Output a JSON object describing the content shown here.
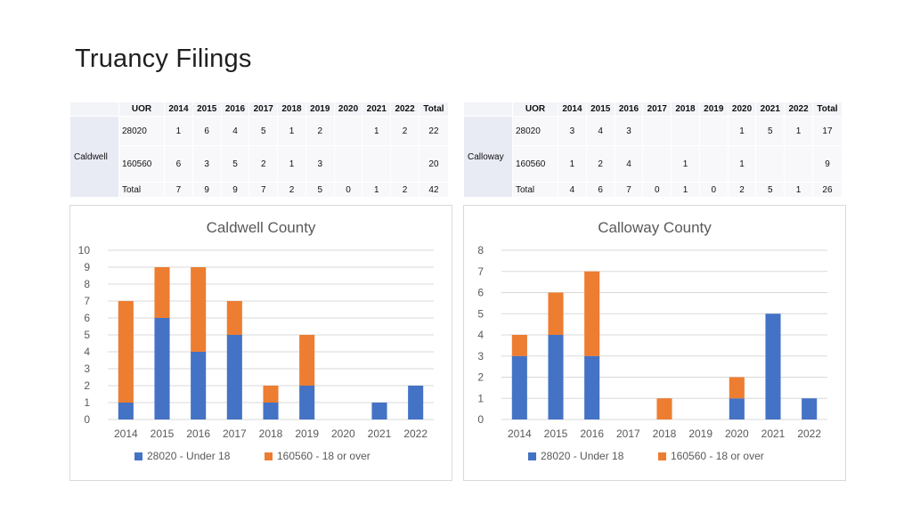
{
  "page": {
    "title": "Truancy Filings"
  },
  "tables": [
    {
      "county": "Caldwell",
      "headers": [
        "UOR",
        "2014",
        "2015",
        "2016",
        "2017",
        "2018",
        "2019",
        "2020",
        "2021",
        "2022",
        "Total"
      ],
      "rows": [
        [
          "28020",
          "1",
          "6",
          "4",
          "5",
          "1",
          "2",
          "",
          "1",
          "2",
          "22"
        ],
        [
          "160560",
          "6",
          "3",
          "5",
          "2",
          "1",
          "3",
          "",
          "",
          "",
          "20"
        ],
        [
          "Total",
          "7",
          "9",
          "9",
          "7",
          "2",
          "5",
          "0",
          "1",
          "2",
          "42"
        ]
      ]
    },
    {
      "county": "Calloway",
      "headers": [
        "UOR",
        "2014",
        "2015",
        "2016",
        "2017",
        "2018",
        "2019",
        "2020",
        "2021",
        "2022",
        "Total"
      ],
      "rows": [
        [
          "28020",
          "3",
          "4",
          "3",
          "",
          "",
          "",
          "1",
          "5",
          "1",
          "17"
        ],
        [
          "160560",
          "1",
          "2",
          "4",
          "",
          "1",
          "",
          "1",
          "",
          "",
          "9"
        ],
        [
          "Total",
          "4",
          "6",
          "7",
          "0",
          "1",
          "0",
          "2",
          "5",
          "1",
          "26"
        ]
      ]
    }
  ],
  "chart_data": [
    {
      "type": "bar",
      "stacked": true,
      "title": "Caldwell County",
      "categories": [
        "2014",
        "2015",
        "2016",
        "2017",
        "2018",
        "2019",
        "2020",
        "2021",
        "2022"
      ],
      "series": [
        {
          "name": "28020 - Under 18",
          "values": [
            1,
            6,
            4,
            5,
            1,
            2,
            0,
            1,
            2
          ],
          "color": "#4472c4"
        },
        {
          "name": "160560 - 18 or over",
          "values": [
            6,
            3,
            5,
            2,
            1,
            3,
            0,
            0,
            0
          ],
          "color": "#ed7d31"
        }
      ],
      "ylim": [
        0,
        10
      ],
      "yticks": [
        "0",
        "1",
        "2",
        "3",
        "4",
        "5",
        "6",
        "7",
        "8",
        "9",
        "10"
      ],
      "grid": true,
      "legend": "bottom"
    },
    {
      "type": "bar",
      "stacked": true,
      "title": "Calloway County",
      "categories": [
        "2014",
        "2015",
        "2016",
        "2017",
        "2018",
        "2019",
        "2020",
        "2021",
        "2022"
      ],
      "series": [
        {
          "name": "28020 - Under 18",
          "values": [
            3,
            4,
            3,
            0,
            0,
            0,
            1,
            5,
            1
          ],
          "color": "#4472c4"
        },
        {
          "name": "160560 - 18 or over",
          "values": [
            1,
            2,
            4,
            0,
            1,
            0,
            1,
            0,
            0
          ],
          "color": "#ed7d31"
        }
      ],
      "ylim": [
        0,
        8
      ],
      "yticks": [
        "0",
        "1",
        "2",
        "3",
        "4",
        "5",
        "6",
        "7",
        "8"
      ],
      "grid": true,
      "legend": "bottom"
    }
  ]
}
